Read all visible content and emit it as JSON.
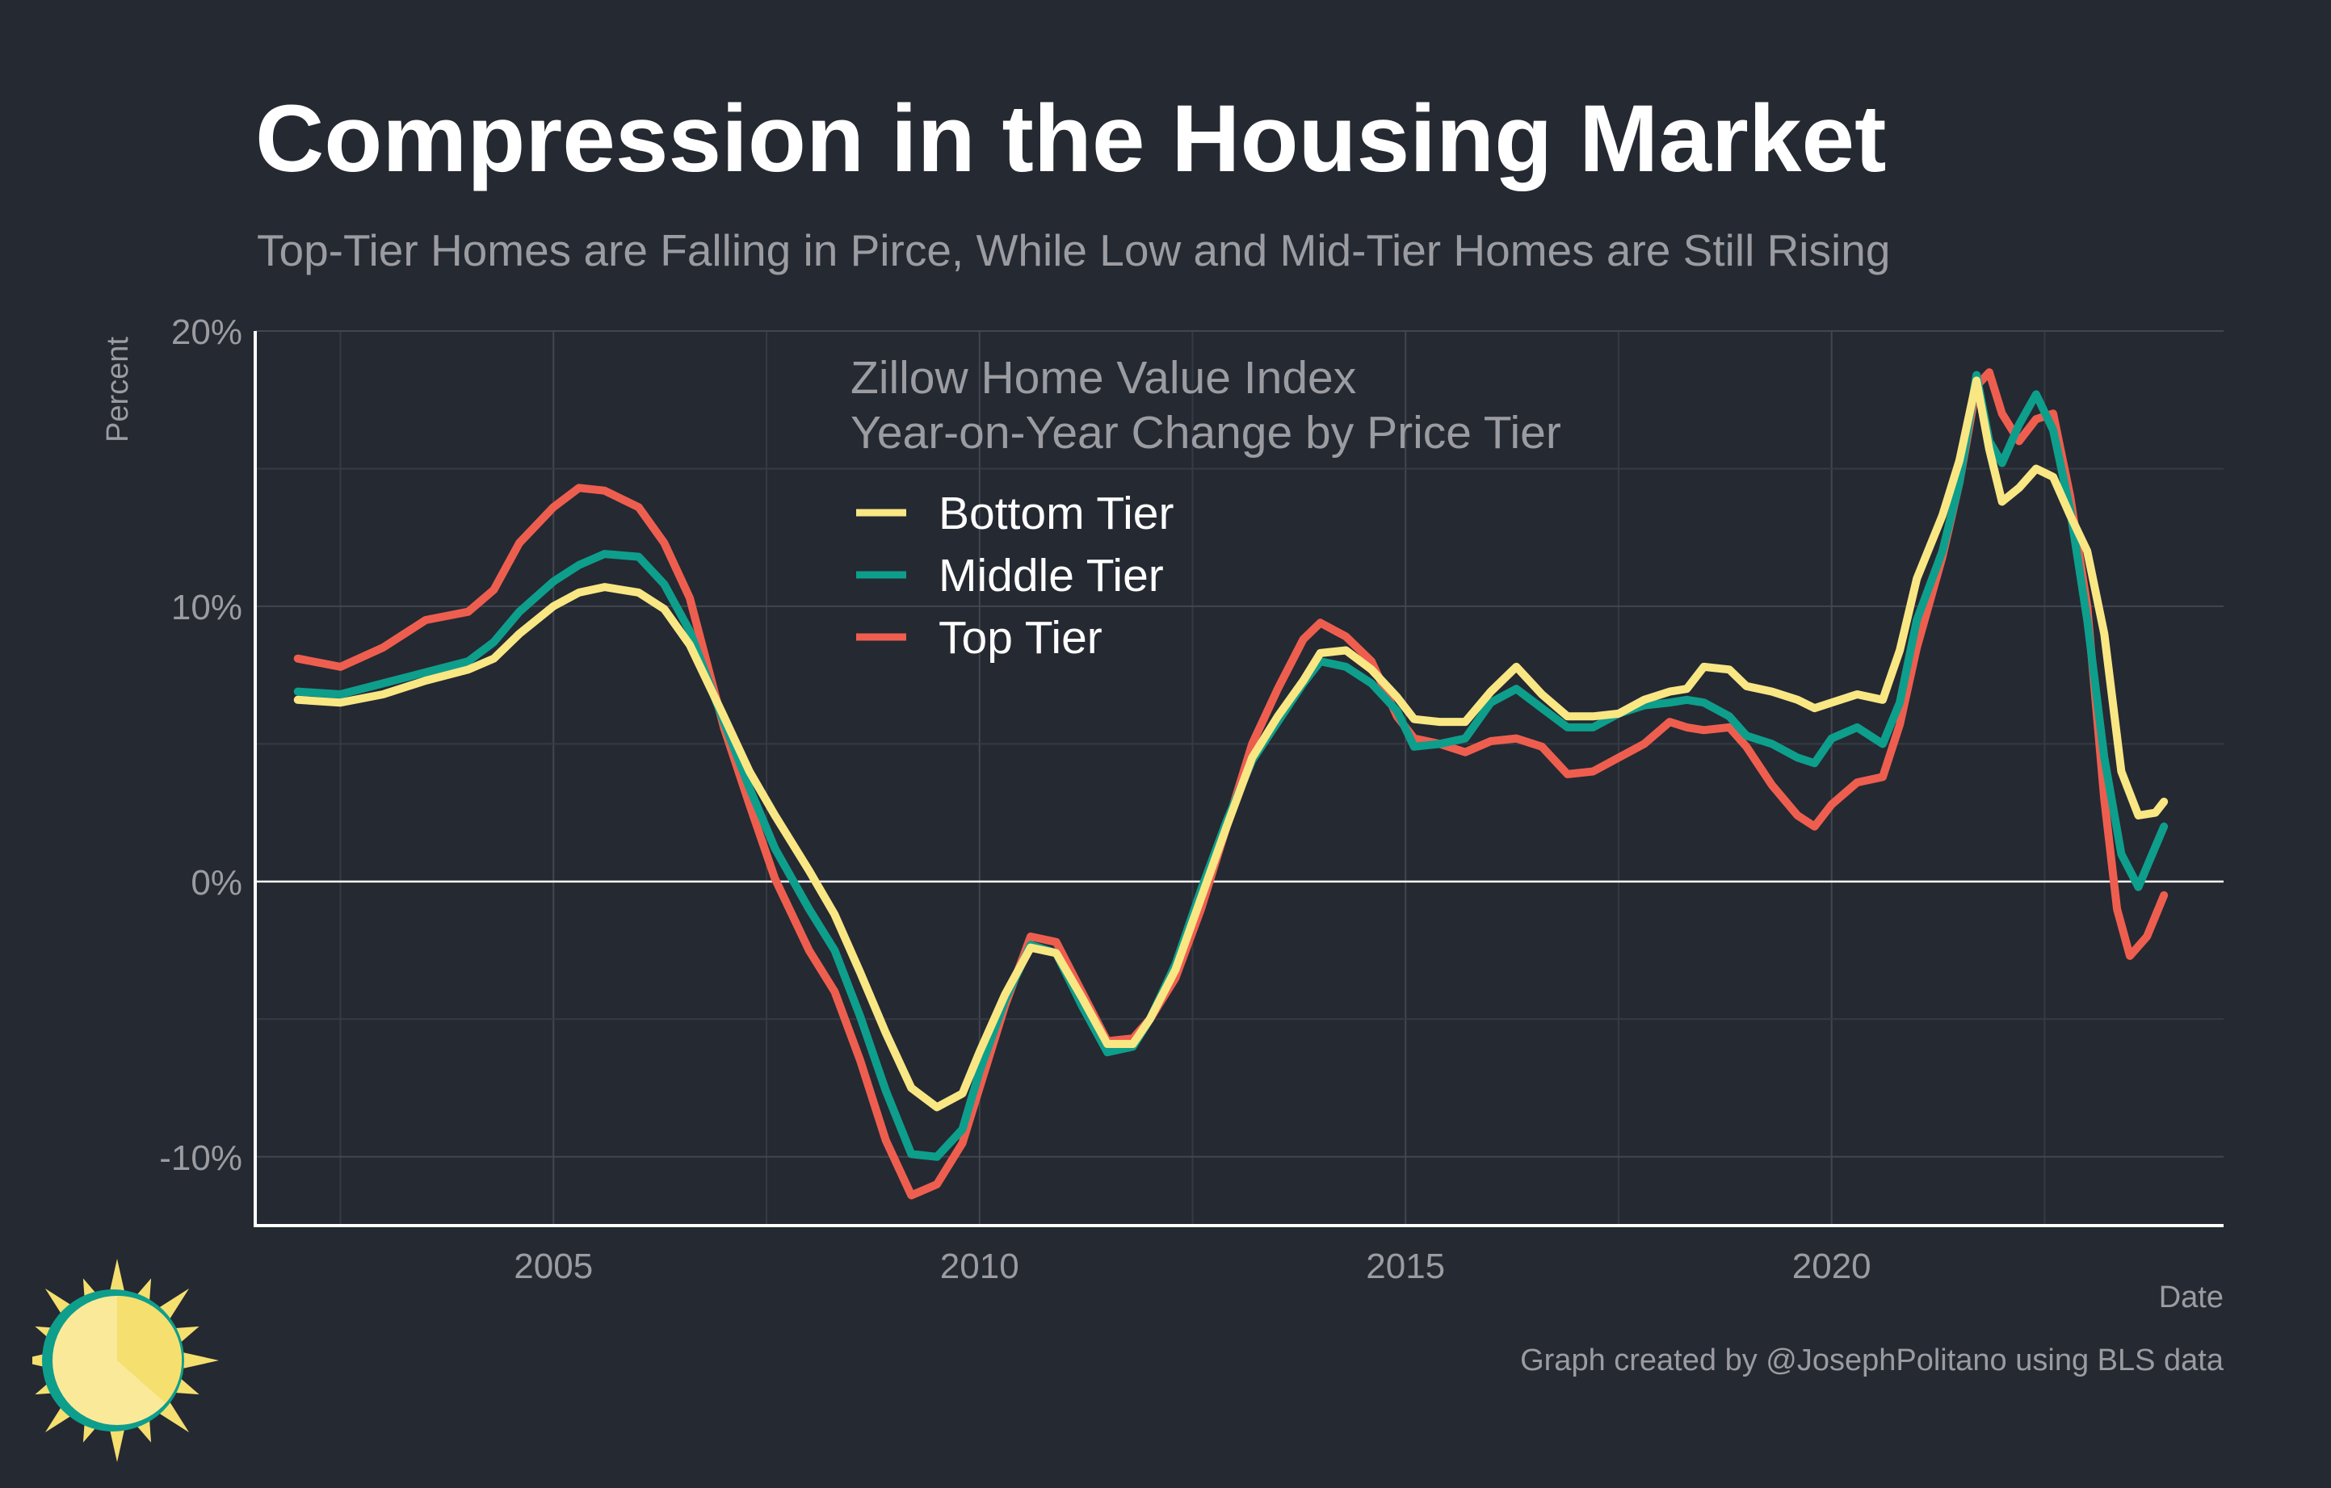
{
  "title": "Compression in the Housing Market",
  "subtitle": "Top-Tier Homes are Falling in Pirce, While Low and Mid-Tier Homes are Still Rising",
  "caption": "Graph created by @JosephPolitano using BLS data",
  "chart_data": {
    "type": "line",
    "title": "Compression in the Housing Market",
    "subtitle": "Top-Tier Homes are Falling in Pirce, While Low and Mid-Tier Homes are Still Rising",
    "annotation": [
      "Zillow Home Value Index",
      "Year-on-Year Change by Price Tier"
    ],
    "xlabel": "Date",
    "ylabel": "Percent",
    "xlim": [
      2001.5,
      2024.6
    ],
    "ylim": [
      -12.5,
      20
    ],
    "xticks": [
      2005,
      2010,
      2015,
      2020
    ],
    "xtick_labels": [
      "2005",
      "2010",
      "2015",
      "2020"
    ],
    "yticks": [
      -10,
      0,
      10,
      20
    ],
    "ytick_labels": [
      "-10%",
      "0%",
      "10%",
      "20%"
    ],
    "grid": true,
    "legend_position": "top-center",
    "series": [
      {
        "name": "Bottom Tier",
        "color": "#f9e784",
        "points": [
          [
            2002.0,
            6.6
          ],
          [
            2002.5,
            6.5
          ],
          [
            2003.0,
            6.8
          ],
          [
            2003.5,
            7.3
          ],
          [
            2004.0,
            7.7
          ],
          [
            2004.3,
            8.1
          ],
          [
            2004.6,
            9.0
          ],
          [
            2005.0,
            10.0
          ],
          [
            2005.3,
            10.5
          ],
          [
            2005.6,
            10.7
          ],
          [
            2006.0,
            10.5
          ],
          [
            2006.3,
            9.9
          ],
          [
            2006.6,
            8.6
          ],
          [
            2007.0,
            6.0
          ],
          [
            2007.3,
            4.0
          ],
          [
            2007.6,
            2.4
          ],
          [
            2008.0,
            0.4
          ],
          [
            2008.3,
            -1.2
          ],
          [
            2008.6,
            -3.3
          ],
          [
            2008.9,
            -5.5
          ],
          [
            2009.2,
            -7.5
          ],
          [
            2009.5,
            -8.2
          ],
          [
            2009.8,
            -7.7
          ],
          [
            2010.0,
            -6.2
          ],
          [
            2010.3,
            -4.1
          ],
          [
            2010.6,
            -2.4
          ],
          [
            2010.9,
            -2.6
          ],
          [
            2011.2,
            -4.2
          ],
          [
            2011.5,
            -5.9
          ],
          [
            2011.8,
            -5.9
          ],
          [
            2012.0,
            -5.0
          ],
          [
            2012.3,
            -3.2
          ],
          [
            2012.6,
            -0.6
          ],
          [
            2012.9,
            2.0
          ],
          [
            2013.2,
            4.5
          ],
          [
            2013.5,
            6.0
          ],
          [
            2013.8,
            7.3
          ],
          [
            2014.0,
            8.3
          ],
          [
            2014.3,
            8.4
          ],
          [
            2014.6,
            7.7
          ],
          [
            2014.9,
            6.7
          ],
          [
            2015.1,
            5.9
          ],
          [
            2015.4,
            5.8
          ],
          [
            2015.7,
            5.8
          ],
          [
            2016.0,
            6.9
          ],
          [
            2016.3,
            7.8
          ],
          [
            2016.6,
            6.8
          ],
          [
            2016.9,
            6.0
          ],
          [
            2017.2,
            6.0
          ],
          [
            2017.5,
            6.1
          ],
          [
            2017.8,
            6.6
          ],
          [
            2018.1,
            6.9
          ],
          [
            2018.3,
            7.0
          ],
          [
            2018.5,
            7.8
          ],
          [
            2018.8,
            7.7
          ],
          [
            2019.0,
            7.1
          ],
          [
            2019.3,
            6.9
          ],
          [
            2019.6,
            6.6
          ],
          [
            2019.8,
            6.3
          ],
          [
            2020.0,
            6.5
          ],
          [
            2020.3,
            6.8
          ],
          [
            2020.6,
            6.6
          ],
          [
            2020.8,
            8.4
          ],
          [
            2021.0,
            11.0
          ],
          [
            2021.3,
            13.3
          ],
          [
            2021.5,
            15.3
          ],
          [
            2021.7,
            18.2
          ],
          [
            2021.85,
            15.7
          ],
          [
            2022.0,
            13.8
          ],
          [
            2022.2,
            14.3
          ],
          [
            2022.4,
            15.0
          ],
          [
            2022.6,
            14.7
          ],
          [
            2022.8,
            13.3
          ],
          [
            2023.0,
            12.0
          ],
          [
            2023.2,
            9.0
          ],
          [
            2023.4,
            4.0
          ],
          [
            2023.6,
            2.4
          ],
          [
            2023.8,
            2.5
          ],
          [
            2023.9,
            2.9
          ]
        ]
      },
      {
        "name": "Middle Tier",
        "color": "#0e9e8c",
        "points": [
          [
            2002.0,
            6.9
          ],
          [
            2002.5,
            6.8
          ],
          [
            2003.0,
            7.2
          ],
          [
            2003.5,
            7.6
          ],
          [
            2004.0,
            8.0
          ],
          [
            2004.3,
            8.7
          ],
          [
            2004.6,
            9.8
          ],
          [
            2005.0,
            10.9
          ],
          [
            2005.3,
            11.5
          ],
          [
            2005.6,
            11.9
          ],
          [
            2006.0,
            11.8
          ],
          [
            2006.3,
            10.8
          ],
          [
            2006.6,
            9.1
          ],
          [
            2007.0,
            5.8
          ],
          [
            2007.3,
            3.4
          ],
          [
            2007.6,
            1.2
          ],
          [
            2008.0,
            -1.0
          ],
          [
            2008.3,
            -2.5
          ],
          [
            2008.6,
            -4.9
          ],
          [
            2008.9,
            -7.6
          ],
          [
            2009.2,
            -9.9
          ],
          [
            2009.5,
            -10.0
          ],
          [
            2009.8,
            -9.0
          ],
          [
            2010.0,
            -6.9
          ],
          [
            2010.3,
            -4.3
          ],
          [
            2010.6,
            -2.3
          ],
          [
            2010.9,
            -2.6
          ],
          [
            2011.2,
            -4.5
          ],
          [
            2011.5,
            -6.2
          ],
          [
            2011.8,
            -6.0
          ],
          [
            2012.0,
            -5.0
          ],
          [
            2012.3,
            -3.0
          ],
          [
            2012.6,
            -0.3
          ],
          [
            2012.9,
            2.2
          ],
          [
            2013.2,
            4.4
          ],
          [
            2013.5,
            5.8
          ],
          [
            2013.8,
            7.2
          ],
          [
            2014.0,
            8.0
          ],
          [
            2014.3,
            7.8
          ],
          [
            2014.6,
            7.2
          ],
          [
            2014.9,
            6.2
          ],
          [
            2015.1,
            4.9
          ],
          [
            2015.4,
            5.0
          ],
          [
            2015.7,
            5.2
          ],
          [
            2016.0,
            6.5
          ],
          [
            2016.3,
            7.0
          ],
          [
            2016.6,
            6.3
          ],
          [
            2016.9,
            5.6
          ],
          [
            2017.2,
            5.6
          ],
          [
            2017.5,
            6.1
          ],
          [
            2017.8,
            6.4
          ],
          [
            2018.1,
            6.5
          ],
          [
            2018.3,
            6.6
          ],
          [
            2018.5,
            6.5
          ],
          [
            2018.8,
            6.0
          ],
          [
            2019.0,
            5.3
          ],
          [
            2019.3,
            5.0
          ],
          [
            2019.6,
            4.5
          ],
          [
            2019.8,
            4.3
          ],
          [
            2020.0,
            5.2
          ],
          [
            2020.3,
            5.6
          ],
          [
            2020.6,
            5.0
          ],
          [
            2020.8,
            6.5
          ],
          [
            2021.0,
            9.5
          ],
          [
            2021.3,
            12.0
          ],
          [
            2021.5,
            14.5
          ],
          [
            2021.7,
            18.4
          ],
          [
            2021.85,
            16.0
          ],
          [
            2022.0,
            15.2
          ],
          [
            2022.2,
            16.6
          ],
          [
            2022.4,
            17.7
          ],
          [
            2022.6,
            16.4
          ],
          [
            2022.8,
            13.5
          ],
          [
            2023.0,
            9.5
          ],
          [
            2023.2,
            4.5
          ],
          [
            2023.4,
            1.0
          ],
          [
            2023.6,
            -0.2
          ],
          [
            2023.75,
            0.9
          ],
          [
            2023.9,
            2.0
          ]
        ]
      },
      {
        "name": "Top Tier",
        "color": "#ee5e4f",
        "points": [
          [
            2002.0,
            8.1
          ],
          [
            2002.5,
            7.8
          ],
          [
            2003.0,
            8.5
          ],
          [
            2003.5,
            9.5
          ],
          [
            2004.0,
            9.8
          ],
          [
            2004.3,
            10.6
          ],
          [
            2004.6,
            12.3
          ],
          [
            2005.0,
            13.6
          ],
          [
            2005.3,
            14.3
          ],
          [
            2005.6,
            14.2
          ],
          [
            2006.0,
            13.6
          ],
          [
            2006.3,
            12.3
          ],
          [
            2006.6,
            10.3
          ],
          [
            2007.0,
            5.6
          ],
          [
            2007.3,
            2.8
          ],
          [
            2007.6,
            0.1
          ],
          [
            2008.0,
            -2.5
          ],
          [
            2008.3,
            -4.0
          ],
          [
            2008.6,
            -6.5
          ],
          [
            2008.9,
            -9.4
          ],
          [
            2009.2,
            -11.4
          ],
          [
            2009.5,
            -11.0
          ],
          [
            2009.8,
            -9.5
          ],
          [
            2010.0,
            -7.5
          ],
          [
            2010.3,
            -4.5
          ],
          [
            2010.6,
            -2.0
          ],
          [
            2010.9,
            -2.2
          ],
          [
            2011.2,
            -4.0
          ],
          [
            2011.5,
            -5.8
          ],
          [
            2011.8,
            -5.7
          ],
          [
            2012.0,
            -5.0
          ],
          [
            2012.3,
            -3.5
          ],
          [
            2012.6,
            -1.0
          ],
          [
            2012.9,
            2.0
          ],
          [
            2013.2,
            5.0
          ],
          [
            2013.5,
            7.0
          ],
          [
            2013.8,
            8.8
          ],
          [
            2014.0,
            9.4
          ],
          [
            2014.3,
            8.9
          ],
          [
            2014.6,
            8.0
          ],
          [
            2014.9,
            6.0
          ],
          [
            2015.1,
            5.2
          ],
          [
            2015.4,
            5.0
          ],
          [
            2015.7,
            4.7
          ],
          [
            2016.0,
            5.1
          ],
          [
            2016.3,
            5.2
          ],
          [
            2016.6,
            4.9
          ],
          [
            2016.9,
            3.9
          ],
          [
            2017.2,
            4.0
          ],
          [
            2017.5,
            4.5
          ],
          [
            2017.8,
            5.0
          ],
          [
            2018.1,
            5.8
          ],
          [
            2018.3,
            5.6
          ],
          [
            2018.5,
            5.5
          ],
          [
            2018.8,
            5.6
          ],
          [
            2019.0,
            4.9
          ],
          [
            2019.3,
            3.5
          ],
          [
            2019.6,
            2.4
          ],
          [
            2019.8,
            2.0
          ],
          [
            2020.0,
            2.8
          ],
          [
            2020.3,
            3.6
          ],
          [
            2020.6,
            3.8
          ],
          [
            2020.8,
            5.7
          ],
          [
            2021.0,
            8.5
          ],
          [
            2021.3,
            11.8
          ],
          [
            2021.5,
            14.5
          ],
          [
            2021.7,
            18.0
          ],
          [
            2021.85,
            18.5
          ],
          [
            2022.0,
            17.0
          ],
          [
            2022.2,
            16.0
          ],
          [
            2022.4,
            16.8
          ],
          [
            2022.6,
            17.0
          ],
          [
            2022.8,
            14.0
          ],
          [
            2023.0,
            10.0
          ],
          [
            2023.2,
            3.0
          ],
          [
            2023.35,
            -1.0
          ],
          [
            2023.5,
            -2.7
          ],
          [
            2023.7,
            -2.0
          ],
          [
            2023.9,
            -0.5
          ]
        ]
      }
    ]
  }
}
